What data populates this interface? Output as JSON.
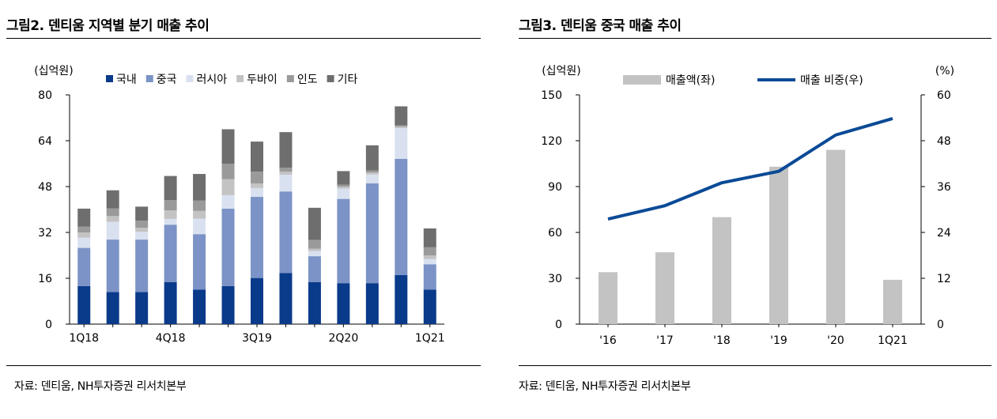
{
  "left": {
    "title": "그림2. 덴티움 지역별 분기 매출 추이",
    "source": "자료: 덴티움, NH투자증권 리서치본부"
  },
  "right": {
    "title": "그림3. 덴티움 중국 매출 추이",
    "source": "자료: 덴티움, NH투자증권 리서치본부"
  },
  "chart_data": [
    {
      "type": "bar",
      "stacked": true,
      "ylabel": "(십억원)",
      "ylim": [
        0,
        80
      ],
      "yticks": [
        0,
        16,
        32,
        48,
        64,
        80
      ],
      "categories": [
        "1Q18",
        "2Q18",
        "3Q18",
        "4Q18",
        "1Q19",
        "2Q19",
        "3Q19",
        "4Q19",
        "1Q20",
        "2Q20",
        "3Q20",
        "4Q20",
        "1Q21"
      ],
      "xtick_labels": [
        "1Q18",
        "",
        "",
        "4Q18",
        "",
        "",
        "3Q19",
        "",
        "",
        "2Q20",
        "",
        "",
        "1Q21"
      ],
      "grid": false,
      "legend": "top",
      "series": [
        {
          "name": "국내",
          "color": "#0a3a8a",
          "values": [
            13.3,
            11.2,
            11.2,
            14.7,
            12.0,
            13.3,
            16.1,
            17.8,
            14.7,
            14.3,
            14.3,
            17.1,
            12.0
          ]
        },
        {
          "name": "중국",
          "color": "#7b93c6",
          "values": [
            13.3,
            18.3,
            18.3,
            20.0,
            19.4,
            27.0,
            28.3,
            28.5,
            9.0,
            29.4,
            34.8,
            40.6,
            8.9
          ]
        },
        {
          "name": "러시아",
          "color": "#d9e1f0",
          "values": [
            3.6,
            6.2,
            2.7,
            2.0,
            5.4,
            4.7,
            3.1,
            5.8,
            1.8,
            3.6,
            3.1,
            10.7,
            1.8
          ]
        },
        {
          "name": "두바이",
          "color": "#c3c3c3",
          "values": [
            1.8,
            2.0,
            1.4,
            3.0,
            2.7,
            5.6,
            1.6,
            1.1,
            0.8,
            0.7,
            0.7,
            0.5,
            1.3
          ]
        },
        {
          "name": "인도",
          "color": "#9a9a9a",
          "values": [
            2.0,
            2.7,
            2.5,
            3.6,
            3.6,
            5.4,
            4.1,
            1.4,
            3.1,
            0.7,
            0.7,
            0.5,
            2.8
          ]
        },
        {
          "name": "기타",
          "color": "#6e6e6e",
          "values": [
            6.3,
            6.3,
            4.9,
            8.4,
            9.3,
            12.0,
            10.5,
            12.4,
            11.2,
            4.7,
            8.8,
            6.6,
            6.6
          ]
        }
      ]
    },
    {
      "type": "bar",
      "combo": "bar+line",
      "ylabel": "(십억원)",
      "y2label": "(%)",
      "ylim": [
        0,
        150
      ],
      "y2lim": [
        0,
        60
      ],
      "yticks": [
        0,
        30,
        60,
        90,
        120,
        150
      ],
      "y2ticks": [
        0,
        12,
        24,
        36,
        48,
        60
      ],
      "categories": [
        "'16",
        "'17",
        "'18",
        "'19",
        "'20",
        "1Q21"
      ],
      "grid": false,
      "legend": "top",
      "series": [
        {
          "name": "매출액(좌)",
          "type": "bar",
          "axis": "left",
          "color": "#c3c3c3",
          "values": [
            34,
            47,
            70,
            103,
            114,
            29
          ]
        },
        {
          "name": "매출 비중(우)",
          "type": "line",
          "axis": "right",
          "color": "#0a4a96",
          "values": [
            27.5,
            31.0,
            37.0,
            40.0,
            49.5,
            53.8
          ]
        }
      ]
    }
  ]
}
